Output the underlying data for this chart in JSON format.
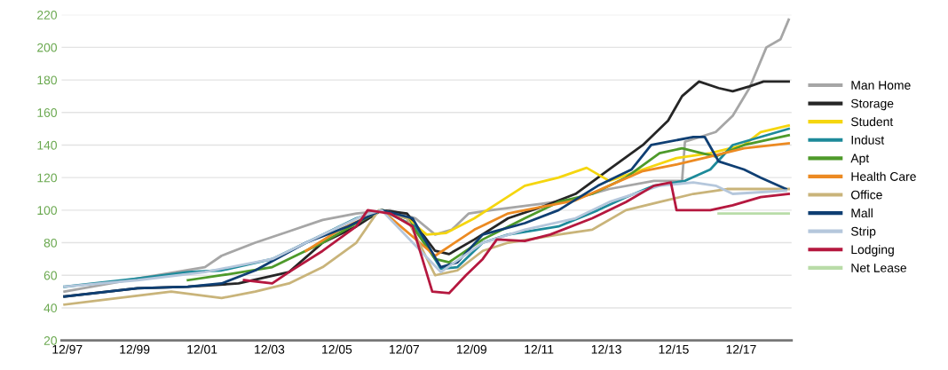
{
  "chart_data": {
    "type": "line",
    "ylim": [
      20,
      220
    ],
    "yticks": [
      20,
      40,
      60,
      80,
      100,
      120,
      140,
      160,
      180,
      200,
      220
    ],
    "xlim": [
      "1997-10",
      "2019-06"
    ],
    "xticks": [
      {
        "value": "1997-12",
        "label": "12/97"
      },
      {
        "value": "1999-12",
        "label": "12/99"
      },
      {
        "value": "2001-12",
        "label": "12/01"
      },
      {
        "value": "2003-12",
        "label": "12/03"
      },
      {
        "value": "2005-12",
        "label": "12/05"
      },
      {
        "value": "2007-12",
        "label": "12/07"
      },
      {
        "value": "2009-12",
        "label": "12/09"
      },
      {
        "value": "2011-12",
        "label": "12/11"
      },
      {
        "value": "2013-12",
        "label": "12/13"
      },
      {
        "value": "2015-12",
        "label": "12/15"
      },
      {
        "value": "2017-12",
        "label": "12/17"
      }
    ],
    "grid": "y",
    "legend": "right",
    "line_style": "solid",
    "marker": "none",
    "series": [
      {
        "name": "Man Home",
        "color": "#a6a6a6",
        "x": [
          "1997-11",
          "2000-01",
          "2002-01",
          "2002-07",
          "2003-07",
          "2004-07",
          "2005-07",
          "2006-07",
          "2007-07",
          "2008-04",
          "2008-11",
          "2009-05",
          "2009-11",
          "2010-07",
          "2012-01",
          "2013-01",
          "2014-01",
          "2015-05",
          "2016-03",
          "2016-04",
          "2017-03",
          "2017-09",
          "2018-03",
          "2018-09",
          "2019-02",
          "2019-05"
        ],
        "values": [
          50,
          58,
          65,
          72,
          80,
          87,
          94,
          98,
          100,
          95,
          85,
          88,
          98,
          100,
          104,
          107,
          113,
          118,
          118,
          142,
          148,
          158,
          175,
          200,
          205,
          217
        ]
      },
      {
        "name": "Storage",
        "color": "#262626",
        "x": [
          "1997-11",
          "2000-01",
          "2001-07",
          "2003-01",
          "2004-07",
          "2005-07",
          "2006-07",
          "2007-04",
          "2008-01",
          "2008-11",
          "2009-04",
          "2010-01",
          "2011-01",
          "2012-01",
          "2013-01",
          "2014-01",
          "2015-01",
          "2015-10",
          "2016-03",
          "2016-09",
          "2017-04",
          "2017-09",
          "2018-03",
          "2018-08",
          "2019-05"
        ],
        "values": [
          47,
          52,
          53,
          55,
          62,
          80,
          90,
          100,
          98,
          75,
          73,
          82,
          95,
          102,
          110,
          125,
          140,
          155,
          170,
          179,
          175,
          173,
          176,
          179,
          179
        ]
      },
      {
        "name": "Student",
        "color": "#f5d60f",
        "x": [
          "2007-04",
          "2008-01",
          "2008-08",
          "2009-03",
          "2010-01",
          "2010-10",
          "2011-07",
          "2012-07",
          "2013-05",
          "2014-01",
          "2015-01",
          "2016-01",
          "2017-01",
          "2018-01",
          "2018-07",
          "2019-05"
        ],
        "values": [
          100,
          95,
          85,
          86,
          95,
          105,
          115,
          120,
          126,
          118,
          125,
          132,
          135,
          140,
          148,
          152
        ]
      },
      {
        "name": "Indust",
        "color": "#1d8a9a",
        "x": [
          "1997-11",
          "2000-01",
          "2001-07",
          "2002-07",
          "2004-01",
          "2005-07",
          "2006-07",
          "2007-04",
          "2008-04",
          "2009-01",
          "2009-07",
          "2010-04",
          "2011-01",
          "2012-07",
          "2013-09",
          "2014-07",
          "2015-05",
          "2016-04",
          "2017-01",
          "2017-09",
          "2019-05"
        ],
        "values": [
          53,
          58,
          62,
          63,
          70,
          85,
          95,
          100,
          90,
          64,
          65,
          80,
          85,
          90,
          100,
          108,
          115,
          118,
          125,
          140,
          150
        ]
      },
      {
        "name": "Apt",
        "color": "#4e9a2a",
        "x": [
          "2001-07",
          "2002-07",
          "2004-01",
          "2005-07",
          "2006-07",
          "2007-04",
          "2008-01",
          "2008-11",
          "2009-04",
          "2010-04",
          "2011-07",
          "2012-07",
          "2013-07",
          "2014-07",
          "2015-07",
          "2016-03",
          "2016-10",
          "2017-03",
          "2018-01",
          "2019-05"
        ],
        "values": [
          57,
          60,
          65,
          80,
          92,
          100,
          95,
          70,
          68,
          82,
          95,
          105,
          110,
          120,
          135,
          138,
          135,
          133,
          140,
          146
        ]
      },
      {
        "name": "Health Care",
        "color": "#ec8a22",
        "x": [
          "2005-01",
          "2006-01",
          "2007-04",
          "2008-11",
          "2010-01",
          "2011-01",
          "2012-01",
          "2013-01",
          "2014-01",
          "2015-01",
          "2016-01",
          "2017-01",
          "2018-01",
          "2019-05"
        ],
        "values": [
          75,
          88,
          100,
          72,
          88,
          98,
          102,
          106,
          115,
          124,
          128,
          133,
          138,
          141
        ]
      },
      {
        "name": "Office",
        "color": "#c9b47a",
        "x": [
          "1997-11",
          "1999-01",
          "2001-01",
          "2002-07",
          "2003-07",
          "2004-07",
          "2005-07",
          "2006-07",
          "2007-03",
          "2008-01",
          "2008-11",
          "2009-07",
          "2010-04",
          "2011-01",
          "2012-07",
          "2013-07",
          "2014-07",
          "2015-07",
          "2016-07",
          "2017-07",
          "2019-05"
        ],
        "values": [
          42,
          45,
          50,
          46,
          50,
          55,
          65,
          80,
          100,
          95,
          60,
          63,
          75,
          80,
          85,
          88,
          100,
          105,
          110,
          113,
          113
        ]
      },
      {
        "name": "Mall",
        "color": "#0f3f73",
        "x": [
          "1997-11",
          "2000-01",
          "2001-07",
          "2002-07",
          "2003-07",
          "2005-01",
          "2006-04",
          "2007-04",
          "2008-03",
          "2009-01",
          "2009-07",
          "2010-04",
          "2011-07",
          "2012-07",
          "2013-09",
          "2014-09",
          "2015-04",
          "2016-07",
          "2016-11",
          "2017-04",
          "2018-01",
          "2018-07",
          "2019-04"
        ],
        "values": [
          47,
          52,
          53,
          55,
          63,
          80,
          90,
          100,
          95,
          65,
          68,
          85,
          92,
          100,
          115,
          125,
          140,
          145,
          145,
          130,
          125,
          120,
          113
        ]
      },
      {
        "name": "Strip",
        "color": "#b5c7dc",
        "x": [
          "1997-11",
          "2000-01",
          "2002-01",
          "2004-01",
          "2005-07",
          "2006-10",
          "2007-04",
          "2009-01",
          "2010-04",
          "2011-07",
          "2013-01",
          "2014-01",
          "2015-07",
          "2016-07",
          "2017-03",
          "2017-09",
          "2019-04"
        ],
        "values": [
          53,
          57,
          62,
          70,
          85,
          97,
          100,
          62,
          80,
          88,
          95,
          105,
          115,
          117,
          115,
          110,
          112
        ]
      },
      {
        "name": "Lodging",
        "color": "#b5183f",
        "x": [
          "2003-03",
          "2004-01",
          "2004-07",
          "2005-07",
          "2006-07",
          "2006-11",
          "2007-07",
          "2008-03",
          "2008-10",
          "2009-04",
          "2009-10",
          "2010-04",
          "2010-09",
          "2011-07",
          "2012-04",
          "2013-07",
          "2014-07",
          "2015-05",
          "2015-11",
          "2016-01",
          "2017-01",
          "2017-09",
          "2018-07",
          "2019-05"
        ],
        "values": [
          57,
          55,
          62,
          75,
          90,
          100,
          98,
          90,
          50,
          49,
          60,
          70,
          82,
          81,
          85,
          95,
          105,
          115,
          117,
          100,
          100,
          103,
          108,
          110
        ]
      },
      {
        "name": "Net Lease",
        "color": "#b9dca8",
        "x": [
          "2017-04",
          "2019-05"
        ],
        "values": [
          98,
          98
        ]
      }
    ]
  }
}
